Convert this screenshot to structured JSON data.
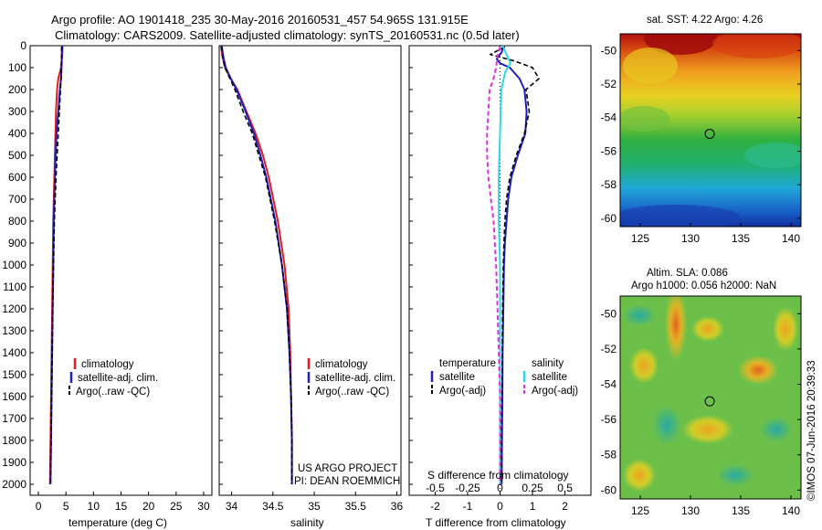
{
  "title_line1": "Argo profile: AO 1901418_235 30-May-2016 20160531_457 54.965S 131.915E",
  "title_line2": "Climatology: CARS2009. Satellite-adjusted climatology: synTS_20160531.nc (0.5d later)",
  "project_line1": "US ARGO PROJECT",
  "project_line2": "PI: DEAN ROEMMICH",
  "watermark": "©IMOS 07-Jun-2016 20:39:33",
  "colors": {
    "climatology": "#e41a1c",
    "satellite": "#1f1fbf",
    "argo": "#000000",
    "sal_satellite": "#2fd8e6",
    "sal_argo": "#e033e0"
  },
  "depth_ticks": [
    0,
    100,
    200,
    300,
    400,
    500,
    600,
    700,
    800,
    900,
    1000,
    1100,
    1200,
    1300,
    1400,
    1500,
    1600,
    1700,
    1800,
    1900,
    2000
  ],
  "chart_data": [
    {
      "type": "line",
      "xlabel": "temperature (deg C)",
      "xlim": [
        -1.5,
        31.5
      ],
      "ylim": [
        2050,
        0
      ],
      "xticks": [
        0,
        5,
        10,
        15,
        20,
        25,
        30
      ],
      "legend": [
        "climatology",
        "satellite-adj. clim.",
        "Argo(..raw -QC)"
      ],
      "series": [
        {
          "name": "climatology",
          "depth": [
            0,
            50,
            100,
            150,
            200,
            300,
            400,
            600,
            800,
            1000,
            1200,
            1400,
            1600,
            1800,
            2000
          ],
          "values": [
            4.4,
            4.3,
            4.1,
            3.6,
            3.4,
            3.2,
            3.1,
            2.9,
            2.7,
            2.6,
            2.5,
            2.4,
            2.3,
            2.2,
            2.1
          ]
        },
        {
          "name": "satellite-adj. clim.",
          "depth": [
            0,
            50,
            100,
            150,
            200,
            300,
            400,
            600,
            800,
            1000,
            1200,
            1400,
            1600,
            1800,
            2000
          ],
          "values": [
            4.3,
            4.25,
            4.2,
            4.1,
            3.9,
            3.6,
            3.3,
            3.0,
            2.8,
            2.7,
            2.6,
            2.5,
            2.4,
            2.3,
            2.2
          ]
        },
        {
          "name": "Argo(..raw -QC)",
          "depth": [
            5,
            50,
            100,
            150,
            200,
            300,
            400,
            600,
            800,
            1000,
            1200,
            1400,
            1600,
            1800,
            2000
          ],
          "values": [
            4.2,
            4.2,
            4.15,
            4.1,
            4.0,
            3.8,
            3.6,
            3.2,
            2.9,
            2.75,
            2.6,
            2.5,
            2.4,
            2.3,
            2.2
          ]
        }
      ]
    },
    {
      "type": "line",
      "xlabel": "salinity",
      "xlim": [
        33.85,
        36.05
      ],
      "ylim": [
        2050,
        0
      ],
      "xticks": [
        34,
        34.5,
        35,
        35.5,
        36
      ],
      "legend": [
        "climatology",
        "satellite-adj. clim.",
        "Argo(..raw -QC)"
      ],
      "series": [
        {
          "name": "climatology",
          "depth": [
            0,
            50,
            100,
            150,
            200,
            300,
            400,
            500,
            600,
            800,
            1000,
            1200,
            1400,
            1600,
            1800,
            2000
          ],
          "values": [
            33.87,
            33.89,
            33.92,
            33.99,
            34.07,
            34.18,
            34.29,
            34.38,
            34.45,
            34.56,
            34.64,
            34.69,
            34.71,
            34.72,
            34.73,
            34.73
          ]
        },
        {
          "name": "satellite-adj. clim.",
          "depth": [
            0,
            50,
            100,
            150,
            200,
            300,
            400,
            500,
            600,
            800,
            1000,
            1200,
            1400,
            1600,
            1800,
            2000
          ],
          "values": [
            33.88,
            33.9,
            33.93,
            33.99,
            34.06,
            34.17,
            34.27,
            34.35,
            34.42,
            34.53,
            34.61,
            34.67,
            34.7,
            34.72,
            34.73,
            34.73
          ]
        },
        {
          "name": "Argo(..raw -QC)",
          "depth": [
            5,
            50,
            100,
            150,
            200,
            300,
            400,
            500,
            600,
            800,
            1000,
            1200,
            1400,
            1600,
            1800,
            2000
          ],
          "values": [
            33.88,
            33.89,
            33.92,
            33.98,
            34.04,
            34.14,
            34.25,
            34.33,
            34.41,
            34.52,
            34.61,
            34.67,
            34.7,
            34.72,
            34.73,
            34.73
          ]
        }
      ]
    },
    {
      "type": "line",
      "xlabel": "T difference from climatology",
      "x2label": "S difference from climatology",
      "xlim": [
        -2.8,
        2.8
      ],
      "ylim": [
        2050,
        0
      ],
      "xticks": [
        -2,
        -1,
        0,
        1,
        2
      ],
      "x2ticks": [
        -0.5,
        -0.25,
        0,
        0.25,
        0.5
      ],
      "legend_temperature_title": "temperature",
      "legend_salinity_title": "salinity",
      "legend": [
        "satellite",
        "Argo(-adj)",
        "satellite",
        "Argo(-adj)"
      ],
      "series": [
        {
          "name": "satellite",
          "kind": "temperature",
          "depth": [
            0,
            30,
            60,
            80,
            100,
            150,
            200,
            300,
            400,
            500,
            600,
            700,
            800,
            900,
            1000,
            1200,
            1400,
            1600,
            1800,
            2000
          ],
          "values": [
            0.1,
            0.05,
            -0.1,
            0.0,
            0.3,
            0.6,
            0.75,
            0.82,
            0.78,
            0.55,
            0.35,
            0.25,
            0.2,
            0.15,
            0.12,
            0.1,
            0.08,
            0.07,
            0.06,
            0.05
          ]
        },
        {
          "name": "Argo(-adj)",
          "kind": "temperature",
          "depth": [
            5,
            40,
            70,
            100,
            150,
            200,
            300,
            400,
            500,
            600,
            700,
            800,
            900,
            1000,
            1200,
            1400,
            1600,
            1800,
            2000
          ],
          "values": [
            0.15,
            -0.3,
            0.45,
            1.0,
            1.2,
            0.8,
            0.9,
            0.75,
            0.5,
            0.3,
            0.2,
            0.15,
            0.12,
            0.1,
            0.08,
            0.07,
            0.06,
            0.05,
            0.05
          ]
        },
        {
          "name": "satellite",
          "kind": "salinity",
          "depth": [
            0,
            40,
            80,
            120,
            200,
            400,
            600,
            800,
            1000,
            1200,
            1400,
            1600,
            1800,
            2000
          ],
          "values": [
            0.02,
            0.05,
            0.08,
            0.04,
            0.01,
            0.0,
            -0.01,
            -0.01,
            0.0,
            0.0,
            0.0,
            0.0,
            0.0,
            0.0
          ]
        },
        {
          "name": "Argo(-adj)",
          "kind": "salinity",
          "depth": [
            5,
            50,
            100,
            150,
            200,
            300,
            400,
            500,
            600,
            700,
            800,
            900,
            1000,
            1200,
            1400,
            1600,
            1800,
            2000
          ],
          "values": [
            0.0,
            -0.02,
            -0.03,
            -0.05,
            -0.08,
            -0.09,
            -0.1,
            -0.1,
            -0.09,
            -0.07,
            -0.05,
            -0.04,
            -0.03,
            -0.02,
            -0.01,
            0.0,
            0.0,
            0.0
          ]
        }
      ]
    },
    {
      "type": "heatmap",
      "title": "sat. SST: 4.22 Argo: 4.26",
      "xlim": [
        123,
        141
      ],
      "ylim": [
        -60.5,
        -49
      ],
      "xticks": [
        125,
        130,
        135,
        140
      ],
      "yticks": [
        -50,
        -52,
        -54,
        -56,
        -58,
        -60
      ],
      "marker": [
        131.915,
        -54.965
      ]
    },
    {
      "type": "heatmap",
      "title_line1": "Altim. SLA: 0.086",
      "title_line2": "Argo h1000: 0.056 h2000: NaN",
      "xlim": [
        123,
        141
      ],
      "ylim": [
        -60.5,
        -49
      ],
      "xticks": [
        125,
        130,
        135,
        140
      ],
      "yticks": [
        -50,
        -52,
        -54,
        -56,
        -58,
        -60
      ],
      "marker": [
        131.915,
        -54.965
      ]
    }
  ]
}
